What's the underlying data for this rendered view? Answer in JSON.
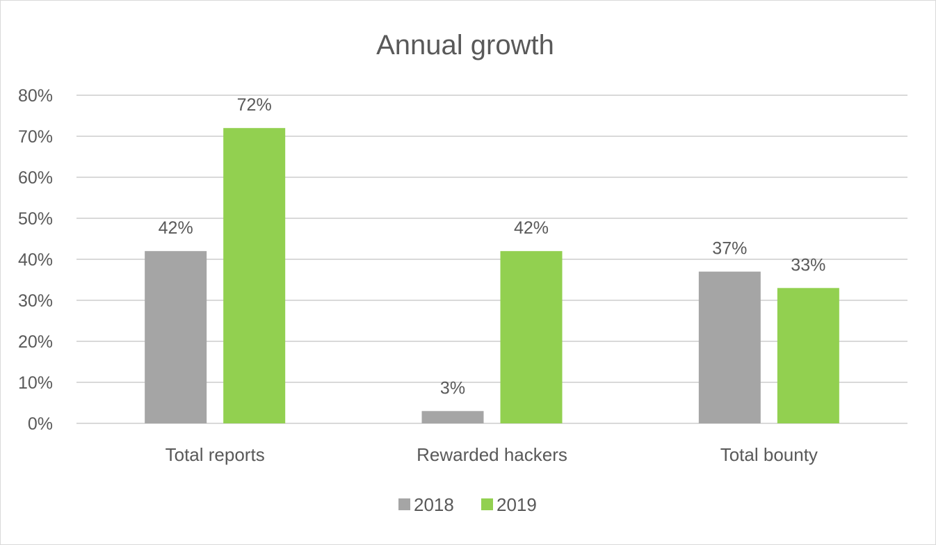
{
  "chart_data": {
    "type": "bar",
    "title": "Annual growth",
    "xlabel": "",
    "ylabel": "",
    "categories": [
      "Total reports",
      "Rewarded hackers",
      "Total bounty"
    ],
    "series": [
      {
        "name": "2018",
        "values": [
          42,
          3,
          37
        ],
        "labels": [
          "42%",
          "3%",
          "37%"
        ],
        "color": "#a5a5a5"
      },
      {
        "name": "2019",
        "values": [
          72,
          42,
          33
        ],
        "labels": [
          "72%",
          "42%",
          "33%"
        ],
        "color": "#92d050"
      }
    ],
    "ylim": [
      0,
      80
    ],
    "yticks": [
      "0%",
      "10%",
      "20%",
      "30%",
      "40%",
      "50%",
      "60%",
      "70%",
      "80%"
    ],
    "grid": true,
    "legend": "bottom"
  }
}
